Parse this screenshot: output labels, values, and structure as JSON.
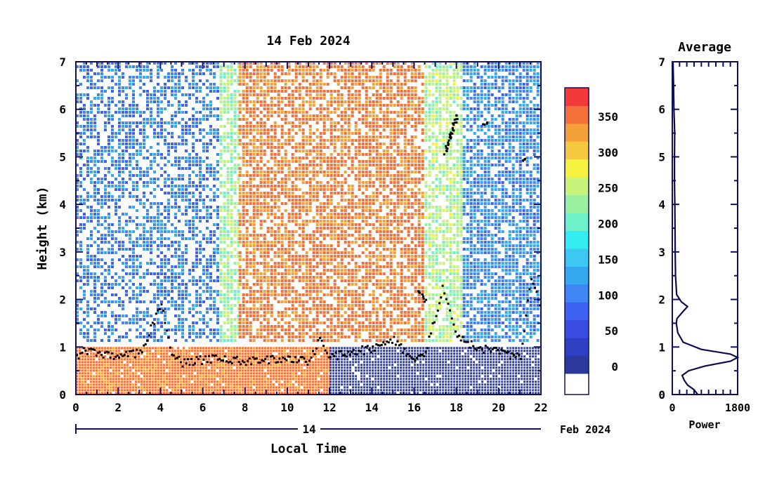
{
  "chart_data": [
    {
      "type": "heatmap",
      "title": "14 Feb 2024",
      "xlabel": "Local Time",
      "ylabel": "Height (km)",
      "xlim": [
        0,
        22
      ],
      "ylim": [
        0,
        7
      ],
      "x_ticks": [
        0,
        2,
        4,
        6,
        8,
        10,
        12,
        14,
        16,
        18,
        20,
        22
      ],
      "y_ticks": [
        0,
        1,
        2,
        3,
        4,
        5,
        6,
        7
      ],
      "date_axis": {
        "day_label": "14",
        "month_label": "Feb 2024"
      },
      "colorbar": {
        "ticks": [
          0,
          50,
          100,
          150,
          200,
          250,
          300,
          350
        ],
        "levels": [
          0,
          25,
          50,
          75,
          100,
          125,
          150,
          175,
          200,
          225,
          250,
          275,
          300,
          325,
          350,
          375
        ],
        "colors": [
          "#2b3a9c",
          "#2f3fc2",
          "#3a4be0",
          "#3e63f2",
          "#3f86f2",
          "#36a8ee",
          "#3cc8f0",
          "#34ecf2",
          "#6ef0c8",
          "#9bf0a0",
          "#c9f27a",
          "#f4f23e",
          "#f5c842",
          "#f5a13a",
          "#f5713a",
          "#f23a3a"
        ]
      },
      "regions": [
        {
          "x": [
            0,
            6.8
          ],
          "y": [
            1.1,
            7
          ],
          "level": 110,
          "note": "sparse"
        },
        {
          "x": [
            6.8,
            7.7
          ],
          "y": [
            1.1,
            7
          ],
          "level": 240,
          "note": "transition"
        },
        {
          "x": [
            7.7,
            16.5
          ],
          "y": [
            1.1,
            7
          ],
          "level": 360
        },
        {
          "x": [
            16.5,
            18.3
          ],
          "y": [
            1.1,
            7
          ],
          "level": 250,
          "note": "transition"
        },
        {
          "x": [
            18.3,
            22
          ],
          "y": [
            1.1,
            7
          ],
          "level": 120
        },
        {
          "x": [
            0,
            12
          ],
          "y": [
            0,
            1.0
          ],
          "level": 370,
          "note": "boundary layer"
        },
        {
          "x": [
            12,
            22
          ],
          "y": [
            0,
            1.0
          ],
          "level": 30,
          "note": "boundary layer"
        }
      ],
      "boundary_layer_height": [
        [
          0,
          0.85
        ],
        [
          0.5,
          0.95
        ],
        [
          1,
          0.9
        ],
        [
          2,
          0.8
        ],
        [
          3,
          0.9
        ],
        [
          3.5,
          1.4
        ],
        [
          4,
          1.9
        ],
        [
          4.5,
          0.9
        ],
        [
          5,
          0.7
        ],
        [
          6,
          0.75
        ],
        [
          7,
          0.8
        ],
        [
          8,
          0.7
        ],
        [
          9,
          0.75
        ],
        [
          10,
          0.8
        ],
        [
          11,
          0.7
        ],
        [
          11.5,
          1.2
        ],
        [
          12,
          0.8
        ],
        [
          13,
          0.9
        ],
        [
          14,
          1.0
        ],
        [
          15,
          1.2
        ],
        [
          15.5,
          0.9
        ],
        [
          16,
          0.8
        ],
        [
          16.5,
          0.9
        ],
        [
          17,
          1.7
        ],
        [
          17.3,
          2.3
        ],
        [
          18,
          1.2
        ],
        [
          19,
          1.0
        ],
        [
          20,
          0.9
        ],
        [
          21,
          0.8
        ],
        [
          21.5,
          2.5
        ],
        [
          22,
          1.8
        ]
      ],
      "cloud_segments": [
        [
          [
            17.4,
            5.1
          ],
          [
            17.7,
            5.5
          ],
          [
            18.0,
            5.9
          ]
        ],
        [
          [
            19.2,
            5.7
          ],
          [
            19.4,
            5.75
          ]
        ],
        [
          [
            21.1,
            4.95
          ],
          [
            21.15,
            5.0
          ]
        ],
        [
          [
            16.2,
            2.2
          ],
          [
            16.5,
            2.0
          ]
        ]
      ]
    },
    {
      "type": "line",
      "title": "Average",
      "xlabel": "Power",
      "ylabel": "",
      "xlim": [
        0,
        1800
      ],
      "ylim": [
        0,
        7
      ],
      "x_ticks": [
        0,
        1800
      ],
      "y_ticks": [
        0,
        1,
        2,
        3,
        4,
        5,
        6,
        7
      ],
      "series": [
        {
          "points": [
            [
              700,
              0.0
            ],
            [
              600,
              0.1
            ],
            [
              420,
              0.2
            ],
            [
              330,
              0.3
            ],
            [
              270,
              0.4
            ],
            [
              450,
              0.5
            ],
            [
              900,
              0.6
            ],
            [
              1600,
              0.7
            ],
            [
              1900,
              0.78
            ],
            [
              1600,
              0.85
            ],
            [
              800,
              0.95
            ],
            [
              300,
              1.1
            ],
            [
              150,
              1.3
            ],
            [
              110,
              1.5
            ],
            [
              130,
              1.6
            ],
            [
              300,
              1.75
            ],
            [
              420,
              1.85
            ],
            [
              250,
              1.95
            ],
            [
              120,
              2.1
            ],
            [
              90,
              2.5
            ],
            [
              80,
              3.0
            ],
            [
              75,
              3.5
            ],
            [
              70,
              4.0
            ],
            [
              60,
              4.5
            ],
            [
              60,
              5.0
            ],
            [
              65,
              5.5
            ],
            [
              45,
              6.0
            ],
            [
              35,
              6.5
            ],
            [
              20,
              7.0
            ]
          ]
        }
      ]
    }
  ]
}
